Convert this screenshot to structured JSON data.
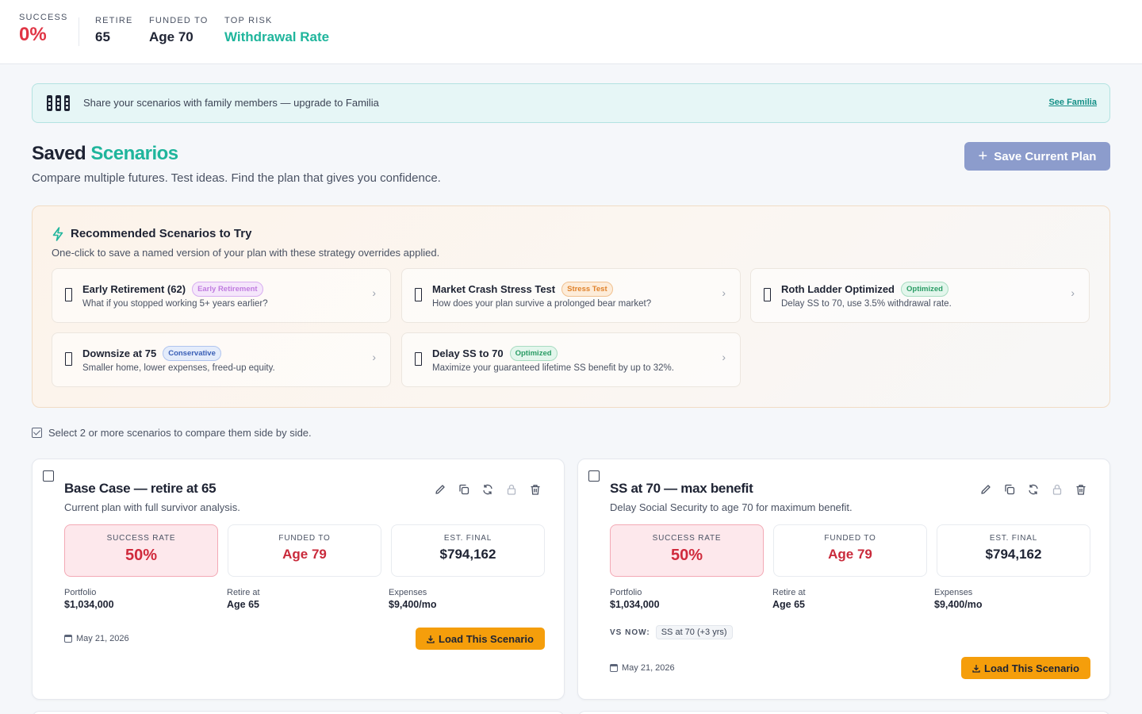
{
  "stats": {
    "success_label": "SUCCESS",
    "success_value": "0%",
    "retire_label": "RETIRE",
    "retire_value": "65",
    "funded_label": "FUNDED TO",
    "funded_value": "Age 70",
    "risk_label": "TOP RISK",
    "risk_value": "Withdrawal Rate"
  },
  "banner": {
    "text": "Share your scenarios with family members — upgrade to Familia",
    "link": "See Familia"
  },
  "header": {
    "title_part1": "Saved",
    "title_part2": "Scenarios",
    "subtitle": "Compare multiple futures. Test ideas. Find the plan that gives you confidence.",
    "save_button": "Save Current Plan"
  },
  "recommended": {
    "title": "Recommended Scenarios to Try",
    "subtitle": "One-click to save a named version of your plan with these strategy overrides applied.",
    "items": [
      {
        "title": "Early Retirement (62)",
        "tag": "Early Retirement",
        "desc": "What if you stopped working 5+ years earlier?"
      },
      {
        "title": "Market Crash Stress Test",
        "tag": "Stress Test",
        "desc": "How does your plan survive a prolonged bear market?"
      },
      {
        "title": "Roth Ladder Optimized",
        "tag": "Optimized",
        "desc": "Delay SS to 70, use 3.5% withdrawal rate."
      },
      {
        "title": "Downsize at 75",
        "tag": "Conservative",
        "desc": "Smaller home, lower expenses, freed-up equity."
      },
      {
        "title": "Delay SS to 70",
        "tag": "Optimized",
        "desc": "Maximize your guaranteed lifetime SS benefit by up to 32%."
      }
    ]
  },
  "compare_hint": "Select 2 or more scenarios to compare them side by side.",
  "scenarios": [
    {
      "title": "Base Case — retire at 65",
      "subtitle": "Current plan with full survivor analysis.",
      "success_label": "SUCCESS RATE",
      "success_value": "50%",
      "funded_label": "FUNDED TO",
      "funded_value": "Age 79",
      "final_label": "EST. FINAL",
      "final_value": "$794,162",
      "portfolio_label": "Portfolio",
      "portfolio_value": "$1,034,000",
      "retire_label": "Retire at",
      "retire_value": "Age 65",
      "expenses_label": "Expenses",
      "expenses_value": "$9,400/mo",
      "date": "May 21, 2026",
      "load_button": "Load This Scenario"
    },
    {
      "title": "SS at 70 — max benefit",
      "subtitle": "Delay Social Security to age 70 for maximum benefit.",
      "success_label": "SUCCESS RATE",
      "success_value": "50%",
      "funded_label": "FUNDED TO",
      "funded_value": "Age 79",
      "final_label": "EST. FINAL",
      "final_value": "$794,162",
      "portfolio_label": "Portfolio",
      "portfolio_value": "$1,034,000",
      "retire_label": "Retire at",
      "retire_value": "Age 65",
      "expenses_label": "Expenses",
      "expenses_value": "$9,400/mo",
      "vs_label": "VS NOW:",
      "vs_chip": "SS at 70 (+3 yrs)",
      "date": "May 21, 2026",
      "load_button": "Load This Scenario"
    }
  ],
  "colors": {
    "accent_teal": "#1fb59c",
    "danger_red": "#e03545",
    "load_orange": "#f59e0b",
    "save_button": "#8c9ccc"
  }
}
